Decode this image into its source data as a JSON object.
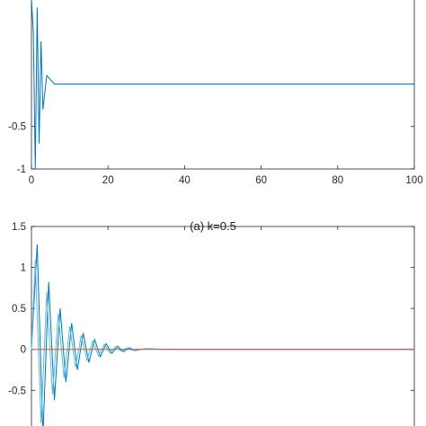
{
  "figure": {
    "captions": [
      "",
      "(a) k=0.5",
      ""
    ]
  },
  "colors": {
    "series_a": "#0072bd",
    "series_b": "#d95319",
    "series_c": "#4dbeee",
    "axis": "#262626"
  },
  "chart_data": [
    {
      "type": "line",
      "title": "",
      "xlabel": "",
      "ylabel": "",
      "xlim": [
        0,
        100
      ],
      "ylim": [
        -1,
        1.2
      ],
      "x_ticks": [
        0,
        20,
        40,
        60,
        80,
        100
      ],
      "y_ticks": [
        -1,
        -0.5
      ],
      "x_tick_labels": [
        "0",
        "20",
        "40",
        "60",
        "80",
        "100"
      ],
      "y_tick_labels": [
        "-1",
        "-0.5"
      ],
      "grid": false,
      "series": [
        {
          "color": "#0072bd",
          "x": [
            0,
            0.5,
            1,
            1.5,
            2,
            2.5,
            3,
            4,
            6,
            10,
            20,
            40,
            60,
            80,
            100
          ],
          "values": [
            1.0,
            0.6,
            -1.0,
            0.9,
            -0.7,
            0.5,
            -0.3,
            0.1,
            0,
            0,
            0,
            0,
            0,
            0,
            0
          ]
        }
      ]
    },
    {
      "type": "line",
      "title": "",
      "xlabel": "",
      "ylabel": "",
      "xlim": [
        0,
        100
      ],
      "ylim": [
        -1.1,
        1.5
      ],
      "x_ticks": [
        0,
        20,
        40,
        60,
        80,
        100
      ],
      "y_ticks": [
        -0.5,
        0,
        0.5,
        1,
        1.5
      ],
      "y_tick_labels": [
        "-0.5",
        "0",
        "0.5",
        "1",
        "1.5"
      ],
      "grid": false,
      "series": [
        {
          "color": "#0072bd",
          "x": [
            0,
            1.5,
            3,
            4.5,
            6,
            7.5,
            9,
            10.5,
            12,
            13.5,
            15,
            16.5,
            18,
            19.5,
            21,
            22.5,
            24,
            25.5,
            27,
            30,
            35,
            40,
            60,
            80,
            100
          ],
          "values": [
            0.0,
            1.28,
            -1.05,
            0.82,
            -0.62,
            0.5,
            -0.4,
            0.32,
            -0.25,
            0.2,
            -0.16,
            0.12,
            -0.09,
            0.07,
            -0.05,
            0.04,
            -0.03,
            0.02,
            -0.015,
            0.01,
            0,
            0,
            0,
            0,
            0
          ]
        },
        {
          "color": "#4dbeee",
          "x": [
            0,
            1,
            2.5,
            4,
            5.5,
            7,
            8.5,
            10,
            11.5,
            13,
            14.5,
            16,
            17.5,
            19,
            20.5,
            22,
            23.5,
            25,
            26.5,
            30,
            35,
            40,
            60,
            80,
            100
          ],
          "values": [
            0.0,
            1.1,
            -0.9,
            0.7,
            -0.55,
            0.44,
            -0.35,
            0.28,
            -0.22,
            0.17,
            -0.13,
            0.1,
            -0.08,
            0.06,
            -0.045,
            0.035,
            -0.025,
            0.018,
            -0.012,
            0.008,
            0,
            0,
            0,
            0,
            0
          ]
        },
        {
          "color": "#d95319",
          "x": [
            0,
            100
          ],
          "values": [
            0,
            0
          ]
        }
      ]
    }
  ]
}
